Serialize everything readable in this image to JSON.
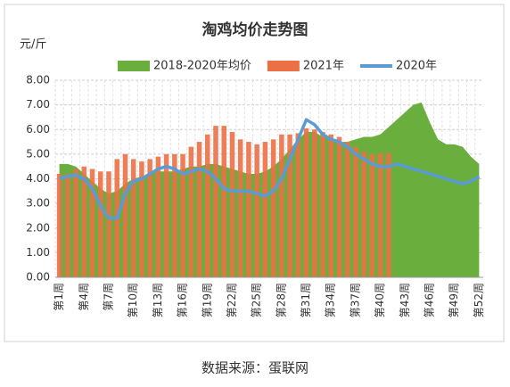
{
  "chart_data": {
    "type": "combo",
    "title": "淘鸡均价走势图",
    "y_unit_label": "元/斤",
    "source": "数据来源：蛋联网",
    "categories": [
      "第1周",
      null,
      null,
      "第4周",
      null,
      null,
      "第7周",
      null,
      null,
      "第10周",
      null,
      null,
      "第13周",
      null,
      null,
      "第16周",
      null,
      null,
      "第19周",
      null,
      null,
      "第22周",
      null,
      null,
      "第25周",
      null,
      null,
      "第28周",
      null,
      null,
      "第31周",
      null,
      null,
      "第34周",
      null,
      null,
      "第37周",
      null,
      null,
      "第40周",
      null,
      null,
      "第43周",
      null,
      null,
      "第46周",
      null,
      null,
      "第49周",
      null,
      null,
      "第52周"
    ],
    "ylim": [
      0,
      8
    ],
    "yticks": [
      {
        "value": 0,
        "label": "0.00"
      },
      {
        "value": 1,
        "label": "1.00"
      },
      {
        "value": 2,
        "label": "2.00"
      },
      {
        "value": 3,
        "label": "3.00"
      },
      {
        "value": 4,
        "label": "4.00"
      },
      {
        "value": 5,
        "label": "5.00"
      },
      {
        "value": 6,
        "label": "6.00"
      },
      {
        "value": 7,
        "label": "7.00"
      },
      {
        "value": 8,
        "label": "8.00"
      }
    ],
    "grid": true,
    "legend": "top",
    "series": [
      {
        "name": "2018-2020年均价",
        "kind": "area",
        "color": "#6aaf3d",
        "values": [
          4.6,
          4.6,
          4.5,
          4.2,
          3.9,
          3.6,
          3.4,
          3.5,
          3.8,
          4.0,
          4.1,
          4.2,
          4.3,
          4.3,
          4.3,
          4.4,
          4.5,
          4.5,
          4.6,
          4.6,
          4.5,
          4.4,
          4.3,
          4.2,
          4.2,
          4.3,
          4.5,
          4.8,
          5.2,
          5.6,
          5.9,
          5.9,
          5.7,
          5.6,
          5.5,
          5.5,
          5.6,
          5.7,
          5.7,
          5.8,
          6.1,
          6.4,
          6.7,
          7.0,
          7.1,
          6.3,
          5.6,
          5.4,
          5.4,
          5.3,
          4.9,
          4.6
        ]
      },
      {
        "name": "2021年",
        "kind": "bar",
        "color": "#ec7046",
        "values": [
          4.2,
          4.2,
          4.4,
          4.5,
          4.4,
          4.3,
          4.3,
          4.8,
          5.0,
          4.8,
          4.7,
          4.8,
          4.9,
          5.0,
          5.0,
          5.0,
          5.3,
          5.5,
          5.8,
          6.15,
          6.15,
          5.9,
          5.6,
          5.5,
          5.4,
          5.5,
          5.6,
          5.8,
          5.8,
          5.85,
          6.05,
          6.0,
          5.9,
          5.8,
          5.7,
          5.5,
          5.3,
          5.1,
          5.0,
          5.05,
          5.05,
          null,
          null,
          null,
          null,
          null,
          null,
          null,
          null,
          null,
          null,
          null
        ]
      },
      {
        "name": "2020年",
        "kind": "line",
        "color": "#5b9bd5",
        "values": [
          4.0,
          4.1,
          4.15,
          4.0,
          3.6,
          2.9,
          2.4,
          2.4,
          3.4,
          3.9,
          4.0,
          4.2,
          4.4,
          4.5,
          4.4,
          4.2,
          4.3,
          4.4,
          4.3,
          4.0,
          3.6,
          3.5,
          3.5,
          3.5,
          3.4,
          3.3,
          3.5,
          4.0,
          4.8,
          5.6,
          6.4,
          6.2,
          5.8,
          5.6,
          5.5,
          5.3,
          5.0,
          4.8,
          4.6,
          4.5,
          4.5,
          4.6,
          4.5,
          4.4,
          4.3,
          4.2,
          4.1,
          4.0,
          3.9,
          3.8,
          3.9,
          4.1
        ]
      }
    ]
  }
}
